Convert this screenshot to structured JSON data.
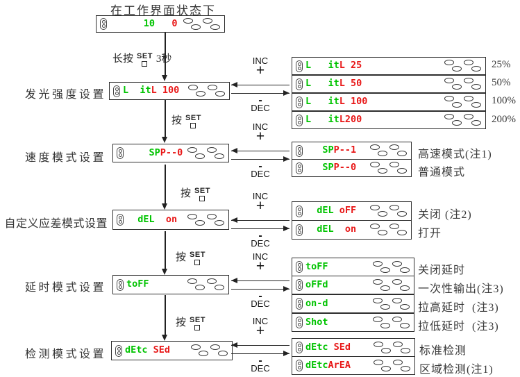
{
  "title": "在工作界面状态下",
  "colors": {
    "green": "#00C300",
    "red": "#E81717"
  },
  "home": {
    "display": {
      "segments": [
        {
          "text": "      10",
          "color": "green"
        },
        {
          "text": "   0",
          "color": "red"
        }
      ]
    }
  },
  "steps": [
    {
      "press": "长按",
      "set": "SET",
      "duration": "3秒"
    },
    {
      "press": "按",
      "set": "SET"
    },
    {
      "press": "按",
      "set": "SET"
    },
    {
      "press": "按",
      "set": "SET"
    },
    {
      "press": "按",
      "set": "SET"
    }
  ],
  "connector": {
    "inc": "INC",
    "plus": "+",
    "minus": "-",
    "dec": "DEC"
  },
  "rows": [
    {
      "label": "发光强度设置",
      "display": {
        "segments": [
          {
            "text": "L  it",
            "color": "green"
          },
          {
            "text": "L 100",
            "color": "red"
          }
        ]
      },
      "options": [
        {
          "display": {
            "segments": [
              {
                "text": "L   it",
                "color": "green"
              },
              {
                "text": "L 25",
                "color": "red"
              }
            ]
          },
          "note": "25%"
        },
        {
          "display": {
            "segments": [
              {
                "text": "L   it",
                "color": "green"
              },
              {
                "text": "L 50",
                "color": "red"
              }
            ]
          },
          "note": "50%"
        },
        {
          "display": {
            "segments": [
              {
                "text": "L   it",
                "color": "green"
              },
              {
                "text": "L 100",
                "color": "red"
              }
            ]
          },
          "note": "100%"
        },
        {
          "display": {
            "segments": [
              {
                "text": "L   it",
                "color": "green"
              },
              {
                "text": "L200",
                "color": "red"
              }
            ]
          },
          "note": "200%"
        }
      ]
    },
    {
      "label": "速度模式设置",
      "display": {
        "segments": [
          {
            "text": "    SP",
            "color": "green"
          },
          {
            "text": "P--0",
            "color": "red"
          }
        ]
      },
      "options": [
        {
          "display": {
            "segments": [
              {
                "text": "   SP",
                "color": "green"
              },
              {
                "text": "P--1",
                "color": "red"
              }
            ]
          },
          "note": "高速模式(注1)"
        },
        {
          "display": {
            "segments": [
              {
                "text": "   SP",
                "color": "green"
              },
              {
                "text": "P--0",
                "color": "red"
              }
            ]
          },
          "note": "普通模式"
        }
      ]
    },
    {
      "label": "自定义应差模式设置",
      "display": {
        "segments": [
          {
            "text": "  dEL",
            "color": "green"
          },
          {
            "text": "  on",
            "color": "red"
          }
        ]
      },
      "options": [
        {
          "display": {
            "segments": [
              {
                "text": "  dEL",
                "color": "green"
              },
              {
                "text": " oFF",
                "color": "red"
              }
            ]
          },
          "note": "关闭 (注2)"
        },
        {
          "display": {
            "segments": [
              {
                "text": "  dEL",
                "color": "green"
              },
              {
                "text": "  on",
                "color": "red"
              }
            ]
          },
          "note": "打开"
        }
      ]
    },
    {
      "label": "延时模式设置",
      "display": {
        "segments": [
          {
            "text": "toFF",
            "color": "green"
          }
        ]
      },
      "options": [
        {
          "display": {
            "segments": [
              {
                "text": "toFF",
                "color": "green"
              }
            ]
          },
          "note": "关闭延时"
        },
        {
          "display": {
            "segments": [
              {
                "text": "oFFd",
                "color": "green"
              }
            ]
          },
          "note": "一次性输出(注3)"
        },
        {
          "display": {
            "segments": [
              {
                "text": "on-d",
                "color": "green"
              }
            ]
          },
          "note": "拉高延时  (注3)"
        },
        {
          "display": {
            "segments": [
              {
                "text": "Shot",
                "color": "green"
              }
            ]
          },
          "note": "拉低延时  (注3)"
        }
      ]
    },
    {
      "label": "检测模式设置",
      "display": {
        "segments": [
          {
            "text": "dEtc",
            "color": "green"
          },
          {
            "text": " SEd",
            "color": "red"
          }
        ]
      },
      "options": [
        {
          "display": {
            "segments": [
              {
                "text": "dEtc",
                "color": "green"
              },
              {
                "text": " SEd",
                "color": "red"
              }
            ]
          },
          "note": "标准检测"
        },
        {
          "display": {
            "segments": [
              {
                "text": "dEtc",
                "color": "green"
              },
              {
                "text": "ArEA",
                "color": "red"
              }
            ]
          },
          "note": "区域检测(注1)"
        }
      ]
    }
  ]
}
